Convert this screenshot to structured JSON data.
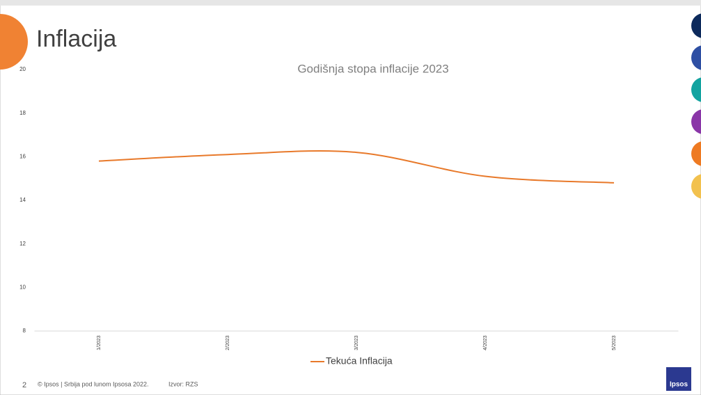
{
  "slide": {
    "title": "Inflacija",
    "page_number": "2",
    "footer": "© Ipsos | Srbija pod lunom Ipsosa 2022.",
    "source": "Izvor: RZS",
    "logo": "Ipsos"
  },
  "chart_data": {
    "type": "line",
    "title": "Godišnja stopa inflacije 2023",
    "categories": [
      "1/2023",
      "2/2023",
      "3/2023",
      "4/2023",
      "5/2023"
    ],
    "series": [
      {
        "name": "Tekuća Inflacija",
        "color": "#e8792a",
        "values": [
          15.8,
          16.1,
          16.2,
          15.1,
          14.8
        ]
      }
    ],
    "ylim": [
      8,
      20
    ],
    "yticks": [
      8,
      10,
      12,
      14,
      16,
      18,
      20
    ],
    "grid": false,
    "legend": "bottom"
  }
}
